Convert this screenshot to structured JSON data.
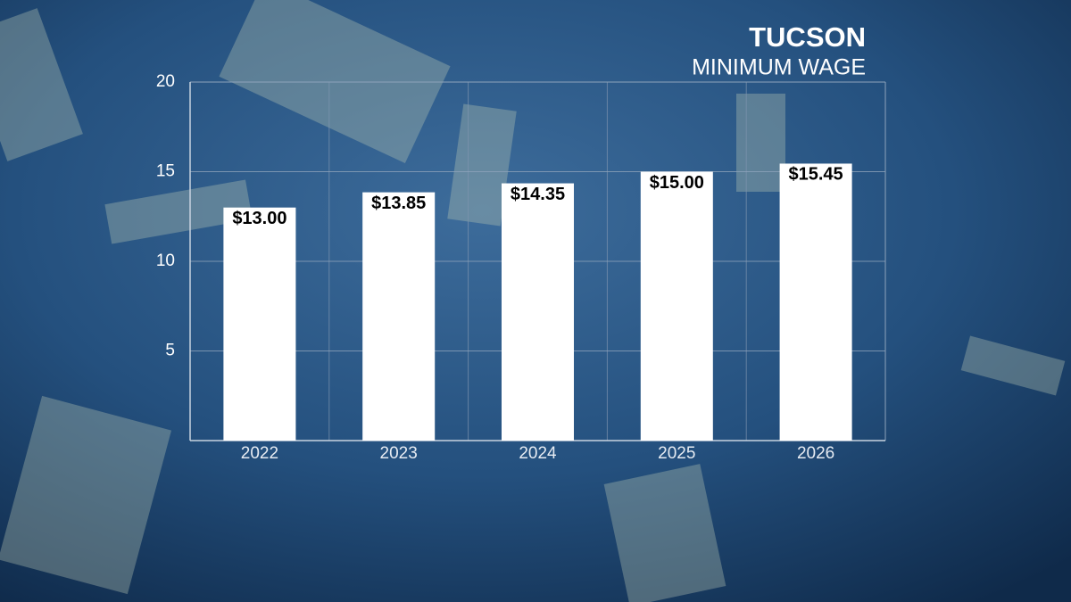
{
  "chart_data": {
    "type": "bar",
    "title": "TUCSON",
    "subtitle": "MINIMUM WAGE",
    "categories": [
      "2022",
      "2023",
      "2024",
      "2025",
      "2026"
    ],
    "values": [
      13.0,
      13.85,
      14.35,
      15.0,
      15.45
    ],
    "value_labels": [
      "$13.00",
      "$13.85",
      "$14.35",
      "$15.00",
      "$15.45"
    ],
    "color": "#ffffff",
    "ylim": [
      0,
      20
    ],
    "yticks": [
      5,
      10,
      15,
      20
    ],
    "grid": true
  }
}
